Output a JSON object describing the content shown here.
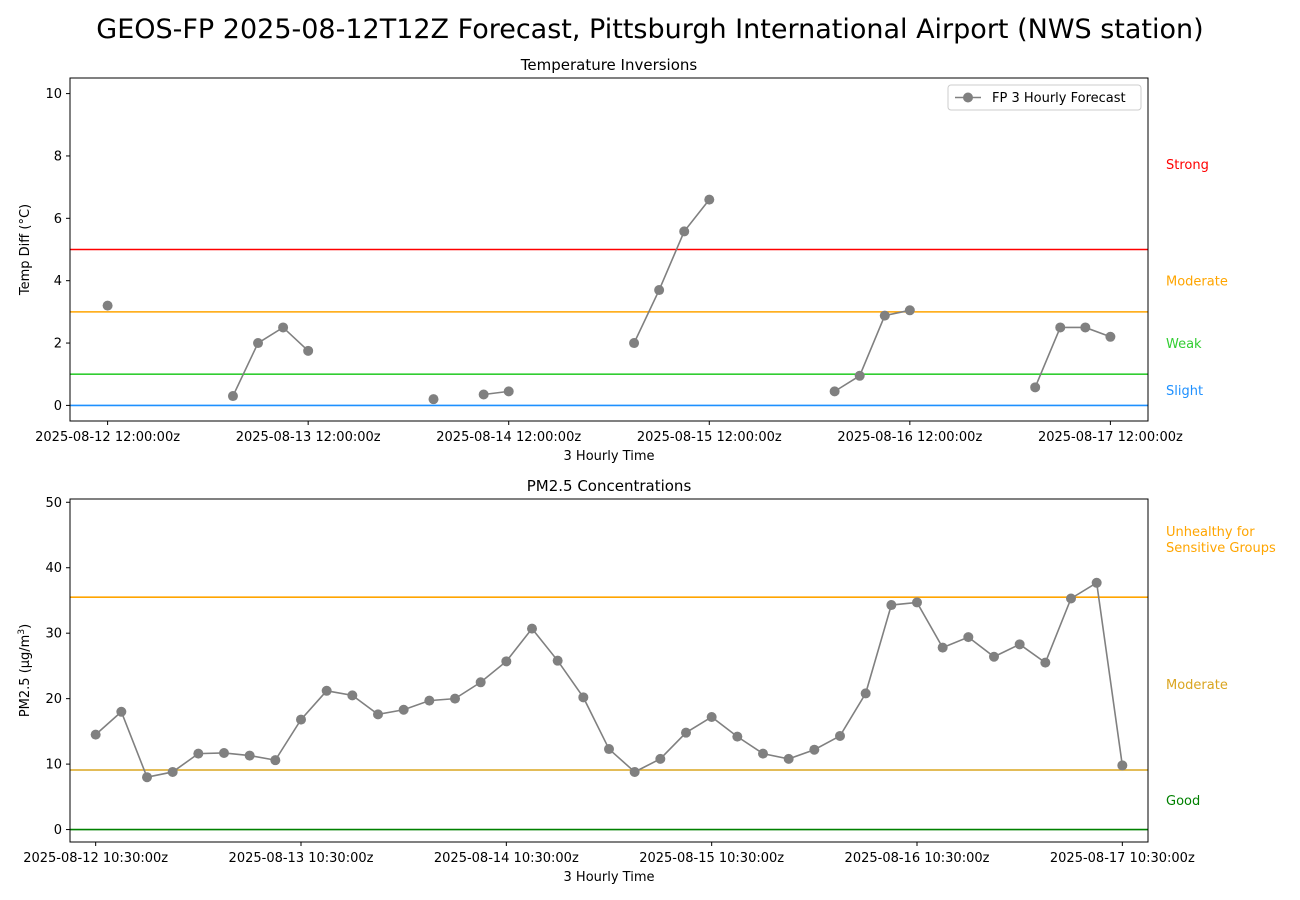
{
  "suptitle": "GEOS-FP 2025-08-12T12Z Forecast, Pittsburgh International Airport (NWS station)",
  "chart_data": [
    {
      "type": "line",
      "title": "Temperature Inversions",
      "xlabel": "3 Hourly Time",
      "ylabel": "Temp Diff (°C)",
      "ylim": [
        -0.5,
        10.5
      ],
      "yticks": [
        0,
        2,
        4,
        6,
        8,
        10
      ],
      "x_start": "2025-08-12 12:00:00z",
      "x_step_hours": 3,
      "xlim_steps": [
        -1.5,
        41.5
      ],
      "xticks": [
        {
          "step": 0,
          "label": "2025-08-12 12:00:00z"
        },
        {
          "step": 8,
          "label": "2025-08-13 12:00:00z"
        },
        {
          "step": 16,
          "label": "2025-08-14 12:00:00z"
        },
        {
          "step": 24,
          "label": "2025-08-15 12:00:00z"
        },
        {
          "step": 32,
          "label": "2025-08-16 12:00:00z"
        },
        {
          "step": 40,
          "label": "2025-08-17 12:00:00z"
        }
      ],
      "grid": false,
      "legend": {
        "position": "top-right",
        "entries": [
          "FP 3 Hourly Forecast"
        ]
      },
      "series": [
        {
          "name": "FP 3 Hourly Forecast",
          "color": "#808080",
          "values": [
            3.2,
            null,
            null,
            null,
            null,
            0.3,
            2.0,
            2.5,
            1.75,
            null,
            null,
            null,
            null,
            0.2,
            null,
            0.35,
            0.45,
            null,
            null,
            null,
            null,
            2.0,
            3.7,
            5.58,
            6.6,
            null,
            null,
            null,
            null,
            0.45,
            0.95,
            2.88,
            3.05,
            null,
            null,
            null,
            null,
            0.58,
            2.5,
            2.5,
            2.2
          ]
        }
      ],
      "thresholds": [
        {
          "value": 0,
          "color": "#1e90ff",
          "label": "Slight",
          "label_y": 0.5
        },
        {
          "value": 1,
          "color": "#32cd32",
          "label": "Weak",
          "label_y": 2.0
        },
        {
          "value": 3,
          "color": "#ffa500",
          "label": "Moderate",
          "label_y": 4.0
        },
        {
          "value": 5,
          "color": "#ff0000",
          "label": "Strong",
          "label_y": 7.75
        }
      ]
    },
    {
      "type": "line",
      "title": "PM2.5 Concentrations",
      "xlabel": "3 Hourly Time",
      "ylabel": "PM2.5 (μg/m3)",
      "ylim": [
        -1.9,
        50.5
      ],
      "yticks": [
        0,
        10,
        20,
        30,
        40,
        50
      ],
      "x_start": "2025-08-12 10:30:00z",
      "x_step_hours": 3,
      "xlim_steps": [
        -1,
        41
      ],
      "xticks": [
        {
          "step": 0,
          "label": "2025-08-12 10:30:00z"
        },
        {
          "step": 8,
          "label": "2025-08-13 10:30:00z"
        },
        {
          "step": 16,
          "label": "2025-08-14 10:30:00z"
        },
        {
          "step": 24,
          "label": "2025-08-15 10:30:00z"
        },
        {
          "step": 32,
          "label": "2025-08-16 10:30:00z"
        },
        {
          "step": 40,
          "label": "2025-08-17 10:30:00z"
        }
      ],
      "grid": false,
      "series": [
        {
          "name": "",
          "color": "#808080",
          "values": [
            14.5,
            18.0,
            8.0,
            8.8,
            11.6,
            11.7,
            11.3,
            10.6,
            16.8,
            21.2,
            20.5,
            17.6,
            18.3,
            19.7,
            20.0,
            22.5,
            25.7,
            30.7,
            25.8,
            20.2,
            12.3,
            8.8,
            10.8,
            14.8,
            17.2,
            14.2,
            11.6,
            10.8,
            12.2,
            14.3,
            20.8,
            34.3,
            34.7,
            27.8,
            29.4,
            26.4,
            28.3,
            25.5,
            35.3,
            37.7,
            9.8
          ]
        }
      ],
      "thresholds": [
        {
          "value": 0,
          "color": "#008000",
          "label": "Good",
          "label_y": 4.5
        },
        {
          "value": 9.1,
          "color": "#daa520",
          "label": "Moderate",
          "label_y": 22.2
        },
        {
          "value": 35.5,
          "color": "#ffa500",
          "label": "Unhealthy for\nSensitive Groups",
          "label_y": 44.4
        }
      ]
    }
  ]
}
